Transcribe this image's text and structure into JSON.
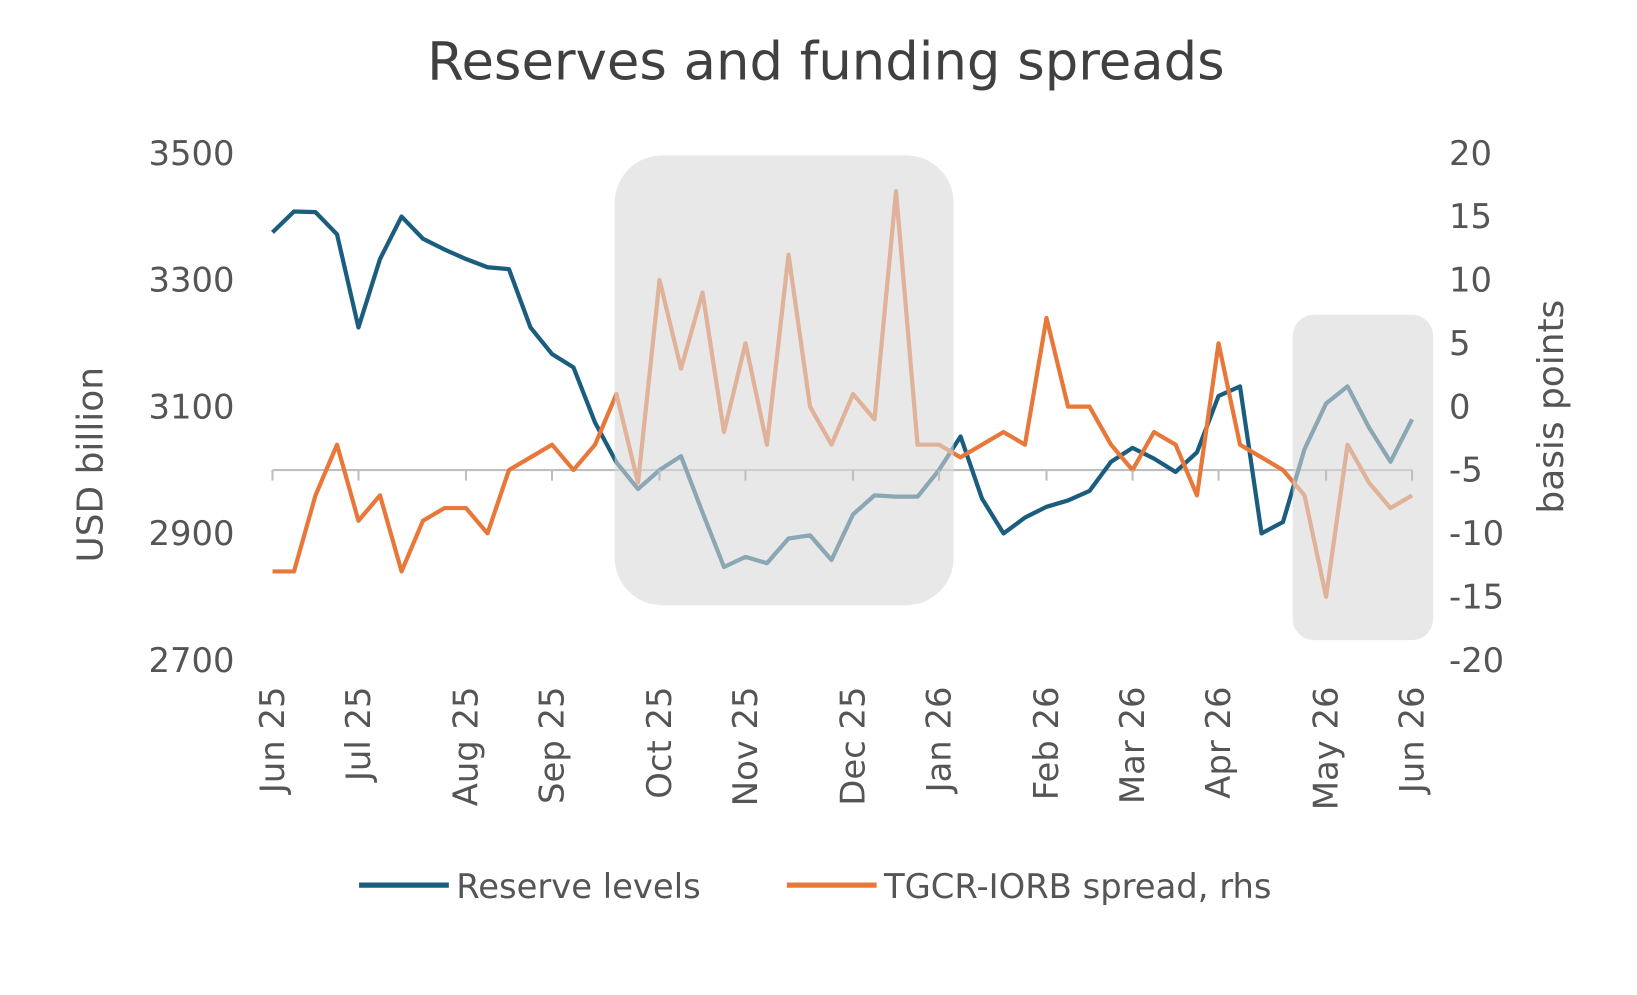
{
  "chart_data": {
    "type": "line",
    "title": "Reserves and funding spreads",
    "y_label": "USD billion",
    "y2_label": "basis points",
    "categories": [
      "Jun 25",
      null,
      null,
      null,
      "Jul 25",
      null,
      null,
      null,
      null,
      "Aug 25",
      null,
      null,
      null,
      "Sep 25",
      null,
      null,
      null,
      null,
      "Oct 25",
      null,
      null,
      null,
      "Nov 25",
      null,
      null,
      null,
      null,
      "Dec 25",
      null,
      null,
      null,
      "Jan 26",
      null,
      null,
      null,
      null,
      "Feb 26",
      null,
      null,
      null,
      "Mar 26",
      null,
      null,
      null,
      "Apr 26",
      null,
      null,
      null,
      null,
      "May 26",
      null,
      null,
      null,
      "Jun 26"
    ],
    "series": [
      {
        "name": "Reserve levels",
        "color": "#1a5d7e",
        "axis": "y",
        "values": [
          3375,
          3408,
          3407,
          3372,
          3225,
          3333,
          3400,
          3365,
          3348,
          3333,
          3320,
          3317,
          3225,
          3183,
          3162,
          3075,
          3012,
          2970,
          3000,
          3022,
          2933,
          2847,
          2863,
          2853,
          2892,
          2897,
          2858,
          2930,
          2960,
          2958,
          2958,
          3000,
          3053,
          2955,
          2900,
          2925,
          2942,
          2952,
          2967,
          3013,
          3035,
          3018,
          2997,
          3028,
          3117,
          3132,
          2900,
          2918,
          3033,
          3105,
          3132,
          3067,
          3013,
          3080
        ]
      },
      {
        "name": "TGCR-IORB spread, rhs",
        "color": "#e8783a",
        "axis": "y2",
        "values": [
          -13,
          -13,
          -7,
          -3,
          -9,
          -7,
          -13,
          -9,
          -8,
          -8,
          -10,
          -5,
          -4,
          -3,
          -5,
          -3,
          1,
          -6,
          10,
          3,
          9,
          -2,
          5,
          -3,
          12,
          0,
          -3,
          1,
          -1,
          17,
          -3,
          -3,
          -4,
          -3,
          -2,
          -3,
          7,
          0,
          0,
          -3,
          -5,
          -2,
          -3,
          -7,
          5,
          -3,
          -4,
          -5,
          -7,
          -15,
          -3,
          -6,
          -8,
          -7
        ]
      }
    ],
    "ylim": [
      2700,
      3500
    ],
    "yticks": [
      2700,
      2900,
      3100,
      3300,
      3500
    ],
    "y2lim": [
      -20,
      20
    ],
    "y2ticks": [
      -20,
      -15,
      -10,
      -5,
      0,
      5,
      10,
      15,
      20
    ],
    "legend": "bottom"
  }
}
